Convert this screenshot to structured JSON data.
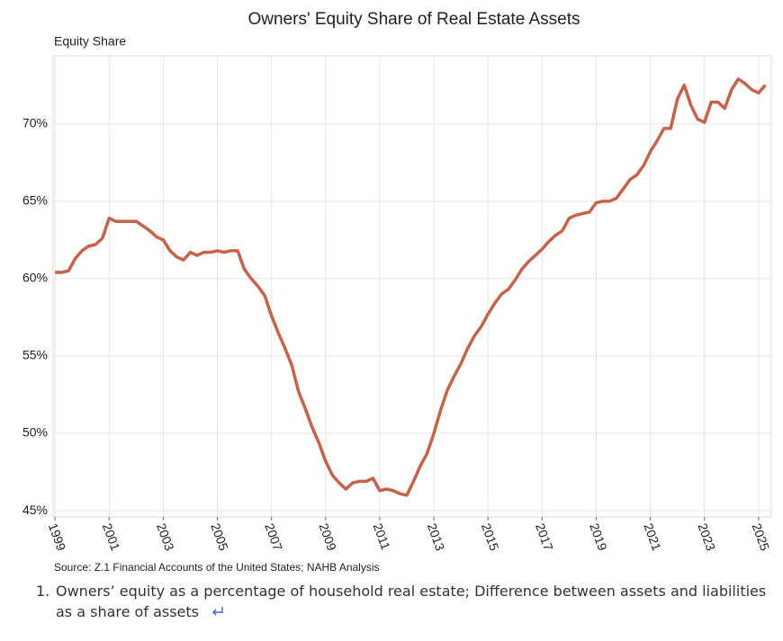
{
  "chart_data": {
    "type": "line",
    "title": "Owners' Equity Share of Real Estate Assets",
    "y_label": "Equity Share",
    "source": "Source: Z.1 Financial Accounts of the United States; NAHB Analysis",
    "x": [
      1999,
      1999.25,
      1999.5,
      1999.75,
      2000,
      2000.25,
      2000.5,
      2000.75,
      2001,
      2001.25,
      2001.5,
      2001.75,
      2002,
      2002.25,
      2002.5,
      2002.75,
      2003,
      2003.25,
      2003.5,
      2003.75,
      2004,
      2004.25,
      2004.5,
      2004.75,
      2005,
      2005.25,
      2005.5,
      2005.75,
      2006,
      2006.25,
      2006.5,
      2006.75,
      2007,
      2007.25,
      2007.5,
      2007.75,
      2008,
      2008.25,
      2008.5,
      2008.75,
      2009,
      2009.25,
      2009.5,
      2009.75,
      2010,
      2010.25,
      2010.5,
      2010.75,
      2011,
      2011.25,
      2011.5,
      2011.75,
      2012,
      2012.25,
      2012.5,
      2012.75,
      2013,
      2013.25,
      2013.5,
      2013.75,
      2014,
      2014.25,
      2014.5,
      2014.75,
      2015,
      2015.25,
      2015.5,
      2015.75,
      2016,
      2016.25,
      2016.5,
      2016.75,
      2017,
      2017.25,
      2017.5,
      2017.75,
      2018,
      2018.25,
      2018.5,
      2018.75,
      2019,
      2019.25,
      2019.5,
      2019.75,
      2020,
      2020.25,
      2020.5,
      2020.75,
      2021,
      2021.25,
      2021.5,
      2021.75,
      2022,
      2022.25,
      2022.5,
      2022.75,
      2023,
      2023.25,
      2023.5,
      2023.75,
      2024,
      2024.25,
      2024.5,
      2024.75,
      2025,
      2025.25
    ],
    "series": [
      {
        "name": "Equity Share",
        "color": "#c8614a",
        "values": [
          60.4,
          60.4,
          60.5,
          61.3,
          61.8,
          62.1,
          62.2,
          62.6,
          63.9,
          63.7,
          63.7,
          63.7,
          63.7,
          63.4,
          63.1,
          62.7,
          62.5,
          61.8,
          61.4,
          61.2,
          61.7,
          61.5,
          61.7,
          61.7,
          61.8,
          61.7,
          61.8,
          61.8,
          60.6,
          60.0,
          59.5,
          58.9,
          57.6,
          56.5,
          55.5,
          54.4,
          52.7,
          51.6,
          50.4,
          49.4,
          48.2,
          47.3,
          46.8,
          46.4,
          46.8,
          46.9,
          46.9,
          47.1,
          46.3,
          46.4,
          46.3,
          46.1,
          46.0,
          46.9,
          47.9,
          48.7,
          50.0,
          51.5,
          52.8,
          53.7,
          54.5,
          55.5,
          56.3,
          56.9,
          57.7,
          58.4,
          59.0,
          59.3,
          59.9,
          60.6,
          61.1,
          61.5,
          61.9,
          62.4,
          62.8,
          63.1,
          63.9,
          64.1,
          64.2,
          64.3,
          64.9,
          65.0,
          65.0,
          65.2,
          65.8,
          66.4,
          66.7,
          67.3,
          68.2,
          68.9,
          69.7,
          69.7,
          71.6,
          72.5,
          71.2,
          70.3,
          70.1,
          71.4,
          71.4,
          71.0,
          72.2,
          72.9,
          72.6,
          72.2,
          72.0,
          72.5
        ]
      }
    ],
    "xlim": [
      1998.93,
      2025.47
    ],
    "xticks": [
      1999,
      2001,
      2003,
      2005,
      2007,
      2009,
      2011,
      2013,
      2015,
      2017,
      2019,
      2021,
      2023,
      2025
    ],
    "ylim": [
      44.6,
      74.4
    ],
    "yticks": [
      {
        "value": 45,
        "label": "45%"
      },
      {
        "value": 50,
        "label": "50%"
      },
      {
        "value": 55,
        "label": "55%"
      },
      {
        "value": 60,
        "label": "60%"
      },
      {
        "value": 65,
        "label": "65%"
      },
      {
        "value": 70,
        "label": "70%"
      }
    ],
    "grid": true
  },
  "footnote": {
    "number": "1.",
    "text": "Owners’ equity as a percentage of household real estate; Difference between assets and liabilities as a share of assets"
  }
}
